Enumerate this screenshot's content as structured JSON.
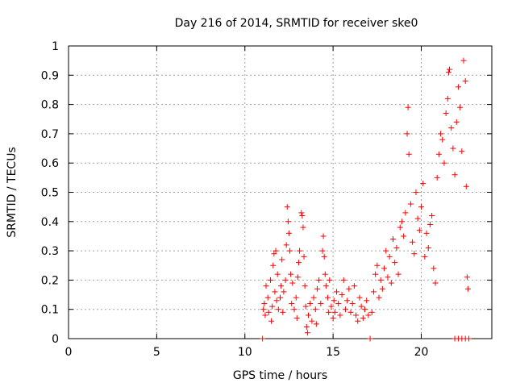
{
  "chart_data": {
    "type": "scatter",
    "title": "Day 216 of 2014, SRMTID for receiver ske0",
    "xlabel": "GPS time / hours",
    "ylabel": "SRMTID / TECUs",
    "xlim": [
      0,
      24
    ],
    "ylim": [
      0,
      1
    ],
    "xticks": [
      "0",
      "5",
      "10",
      "15",
      "20"
    ],
    "yticks": [
      "0",
      "0.1",
      "0.2",
      "0.3",
      "0.4",
      "0.5",
      "0.6",
      "0.7",
      "0.8",
      "0.9",
      "1"
    ],
    "grid": true,
    "marker": "plus",
    "series": [
      {
        "name": "ske0",
        "color": "#ff0000",
        "points": [
          [
            11.0,
            0.0
          ],
          [
            11.05,
            0.1
          ],
          [
            11.1,
            0.12
          ],
          [
            11.15,
            0.08
          ],
          [
            11.2,
            0.18
          ],
          [
            11.3,
            0.14
          ],
          [
            11.35,
            0.09
          ],
          [
            11.45,
            0.2
          ],
          [
            11.5,
            0.06
          ],
          [
            11.55,
            0.11
          ],
          [
            11.6,
            0.25
          ],
          [
            11.65,
            0.29
          ],
          [
            11.7,
            0.16
          ],
          [
            11.75,
            0.3
          ],
          [
            11.8,
            0.13
          ],
          [
            11.85,
            0.22
          ],
          [
            11.9,
            0.1
          ],
          [
            12.0,
            0.14
          ],
          [
            12.05,
            0.18
          ],
          [
            12.1,
            0.27
          ],
          [
            12.15,
            0.09
          ],
          [
            12.2,
            0.16
          ],
          [
            12.3,
            0.2
          ],
          [
            12.35,
            0.32
          ],
          [
            12.4,
            0.45
          ],
          [
            12.45,
            0.4
          ],
          [
            12.5,
            0.36
          ],
          [
            12.55,
            0.3
          ],
          [
            12.6,
            0.22
          ],
          [
            12.65,
            0.12
          ],
          [
            12.7,
            0.19
          ],
          [
            12.8,
            0.1
          ],
          [
            12.9,
            0.14
          ],
          [
            12.95,
            0.07
          ],
          [
            13.0,
            0.21
          ],
          [
            13.05,
            0.26
          ],
          [
            13.1,
            0.3
          ],
          [
            13.2,
            0.43
          ],
          [
            13.25,
            0.42
          ],
          [
            13.3,
            0.38
          ],
          [
            13.35,
            0.28
          ],
          [
            13.4,
            0.18
          ],
          [
            13.45,
            0.11
          ],
          [
            13.5,
            0.04
          ],
          [
            13.55,
            0.02
          ],
          [
            13.6,
            0.08
          ],
          [
            13.7,
            0.12
          ],
          [
            13.8,
            0.06
          ],
          [
            13.9,
            0.14
          ],
          [
            14.0,
            0.1
          ],
          [
            14.05,
            0.05
          ],
          [
            14.1,
            0.17
          ],
          [
            14.2,
            0.2
          ],
          [
            14.3,
            0.12
          ],
          [
            14.4,
            0.3
          ],
          [
            14.45,
            0.35
          ],
          [
            14.5,
            0.28
          ],
          [
            14.55,
            0.22
          ],
          [
            14.6,
            0.18
          ],
          [
            14.7,
            0.14
          ],
          [
            14.75,
            0.09
          ],
          [
            14.8,
            0.2
          ],
          [
            14.9,
            0.11
          ],
          [
            15.0,
            0.07
          ],
          [
            15.05,
            0.13
          ],
          [
            15.1,
            0.09
          ],
          [
            15.2,
            0.16
          ],
          [
            15.3,
            0.12
          ],
          [
            15.4,
            0.08
          ],
          [
            15.5,
            0.15
          ],
          [
            15.6,
            0.2
          ],
          [
            15.7,
            0.1
          ],
          [
            15.8,
            0.13
          ],
          [
            15.9,
            0.17
          ],
          [
            16.0,
            0.09
          ],
          [
            16.1,
            0.12
          ],
          [
            16.2,
            0.18
          ],
          [
            16.3,
            0.08
          ],
          [
            16.4,
            0.06
          ],
          [
            16.5,
            0.14
          ],
          [
            16.6,
            0.11
          ],
          [
            16.7,
            0.07
          ],
          [
            16.8,
            0.1
          ],
          [
            16.9,
            0.13
          ],
          [
            17.0,
            0.08
          ],
          [
            17.1,
            0.0
          ],
          [
            17.2,
            0.09
          ],
          [
            17.3,
            0.16
          ],
          [
            17.4,
            0.22
          ],
          [
            17.5,
            0.25
          ],
          [
            17.6,
            0.14
          ],
          [
            17.7,
            0.2
          ],
          [
            17.8,
            0.17
          ],
          [
            17.9,
            0.24
          ],
          [
            18.0,
            0.3
          ],
          [
            18.1,
            0.21
          ],
          [
            18.2,
            0.28
          ],
          [
            18.3,
            0.19
          ],
          [
            18.4,
            0.34
          ],
          [
            18.5,
            0.26
          ],
          [
            18.6,
            0.31
          ],
          [
            18.7,
            0.22
          ],
          [
            18.8,
            0.38
          ],
          [
            18.9,
            0.4
          ],
          [
            19.0,
            0.35
          ],
          [
            19.1,
            0.43
          ],
          [
            19.2,
            0.7
          ],
          [
            19.25,
            0.79
          ],
          [
            19.3,
            0.63
          ],
          [
            19.4,
            0.46
          ],
          [
            19.5,
            0.33
          ],
          [
            19.6,
            0.29
          ],
          [
            19.7,
            0.5
          ],
          [
            19.8,
            0.41
          ],
          [
            19.9,
            0.37
          ],
          [
            20.0,
            0.45
          ],
          [
            20.1,
            0.53
          ],
          [
            20.2,
            0.28
          ],
          [
            20.3,
            0.36
          ],
          [
            20.4,
            0.31
          ],
          [
            20.5,
            0.39
          ],
          [
            20.6,
            0.42
          ],
          [
            20.7,
            0.24
          ],
          [
            20.8,
            0.19
          ],
          [
            20.9,
            0.55
          ],
          [
            21.0,
            0.63
          ],
          [
            21.1,
            0.7
          ],
          [
            21.2,
            0.68
          ],
          [
            21.3,
            0.6
          ],
          [
            21.4,
            0.77
          ],
          [
            21.5,
            0.82
          ],
          [
            21.55,
            0.91
          ],
          [
            21.6,
            0.92
          ],
          [
            21.7,
            0.72
          ],
          [
            21.8,
            0.65
          ],
          [
            21.9,
            0.56
          ],
          [
            22.0,
            0.74
          ],
          [
            22.1,
            0.86
          ],
          [
            22.2,
            0.79
          ],
          [
            22.3,
            0.64
          ],
          [
            22.4,
            0.95
          ],
          [
            22.5,
            0.88
          ],
          [
            22.55,
            0.52
          ],
          [
            22.6,
            0.21
          ],
          [
            22.65,
            0.17
          ],
          [
            21.9,
            0.0
          ],
          [
            22.1,
            0.0
          ],
          [
            22.3,
            0.0
          ],
          [
            22.5,
            0.0
          ],
          [
            22.7,
            0.0
          ]
        ]
      }
    ]
  }
}
